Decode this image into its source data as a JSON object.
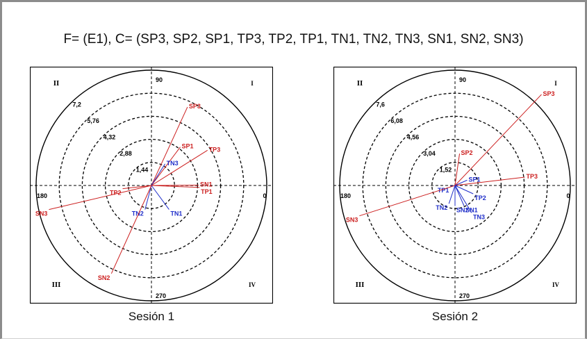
{
  "title": "F= (E1), C= (SP3, SP2, SP1, TP3, TP2, TP1, TN1, TN2, TN3, SN1, SN2, SN3)",
  "colors": {
    "red": "#cc1f1f",
    "blue": "#1f2ec9",
    "black": "#000000"
  },
  "chart_data": [
    {
      "type": "scatter",
      "caption": "Sesión 1",
      "angle_labels": [
        "90",
        "180",
        "0",
        "270"
      ],
      "quadrant_labels": [
        "I",
        "II",
        "III",
        "IV"
      ],
      "radial_max": 7.2,
      "ring_labels": [
        "1,44",
        "2,88",
        "4,32",
        "5,76",
        "7,2"
      ],
      "ring_values": [
        1.44,
        2.88,
        4.32,
        5.76,
        7.2
      ],
      "points": [
        {
          "name": "SP3",
          "x": 2.25,
          "y": 4.9,
          "group": "red"
        },
        {
          "name": "SP1",
          "x": 1.8,
          "y": 2.4,
          "group": "red"
        },
        {
          "name": "TP3",
          "x": 3.5,
          "y": 2.2,
          "group": "red"
        },
        {
          "name": "TN3",
          "x": 0.85,
          "y": 1.35,
          "group": "blue"
        },
        {
          "name": "TP2",
          "x": -1.8,
          "y": -0.2,
          "group": "red"
        },
        {
          "name": "SN1",
          "x": 2.95,
          "y": 0.02,
          "group": "red"
        },
        {
          "name": "TP1",
          "x": 3.0,
          "y": -0.12,
          "group": "red"
        },
        {
          "name": "TN1",
          "x": 1.1,
          "y": -1.5,
          "group": "blue"
        },
        {
          "name": "TN2",
          "x": -0.4,
          "y": -1.5,
          "group": "blue"
        },
        {
          "name": "SN3",
          "x": -6.4,
          "y": -1.5,
          "group": "red"
        },
        {
          "name": "SN2",
          "x": -2.5,
          "y": -5.5,
          "group": "red"
        }
      ]
    },
    {
      "type": "scatter",
      "caption": "Sesión 2",
      "angle_labels": [
        "90",
        "180",
        "0",
        "270"
      ],
      "quadrant_labels": [
        "I",
        "II",
        "III",
        "IV"
      ],
      "radial_max": 7.6,
      "ring_labels": [
        "1,52",
        "3,04",
        "4,56",
        "6,08",
        "7,6"
      ],
      "ring_values": [
        1.52,
        3.04,
        4.56,
        6.08,
        7.6
      ],
      "points": [
        {
          "name": "SP3",
          "x": 5.7,
          "y": 6.0,
          "group": "red"
        },
        {
          "name": "SP2",
          "x": 0.3,
          "y": 2.1,
          "group": "red"
        },
        {
          "name": "TP3",
          "x": 4.6,
          "y": 0.55,
          "group": "red"
        },
        {
          "name": "SP1",
          "x": 0.8,
          "y": 0.35,
          "group": "blue"
        },
        {
          "name": "TP1",
          "x": -0.3,
          "y": -0.05,
          "group": "blue"
        },
        {
          "name": "TP2",
          "x": 1.2,
          "y": -0.55,
          "group": "blue"
        },
        {
          "name": "TN2",
          "x": -0.4,
          "y": -1.2,
          "group": "blue"
        },
        {
          "name": "SN2",
          "x": 0.0,
          "y": -1.35,
          "group": "blue"
        },
        {
          "name": "SN1",
          "x": 0.6,
          "y": -1.35,
          "group": "blue"
        },
        {
          "name": "TN3",
          "x": 1.1,
          "y": -1.8,
          "group": "blue"
        },
        {
          "name": "SN3",
          "x": -6.3,
          "y": -2.0,
          "group": "red"
        }
      ]
    }
  ]
}
